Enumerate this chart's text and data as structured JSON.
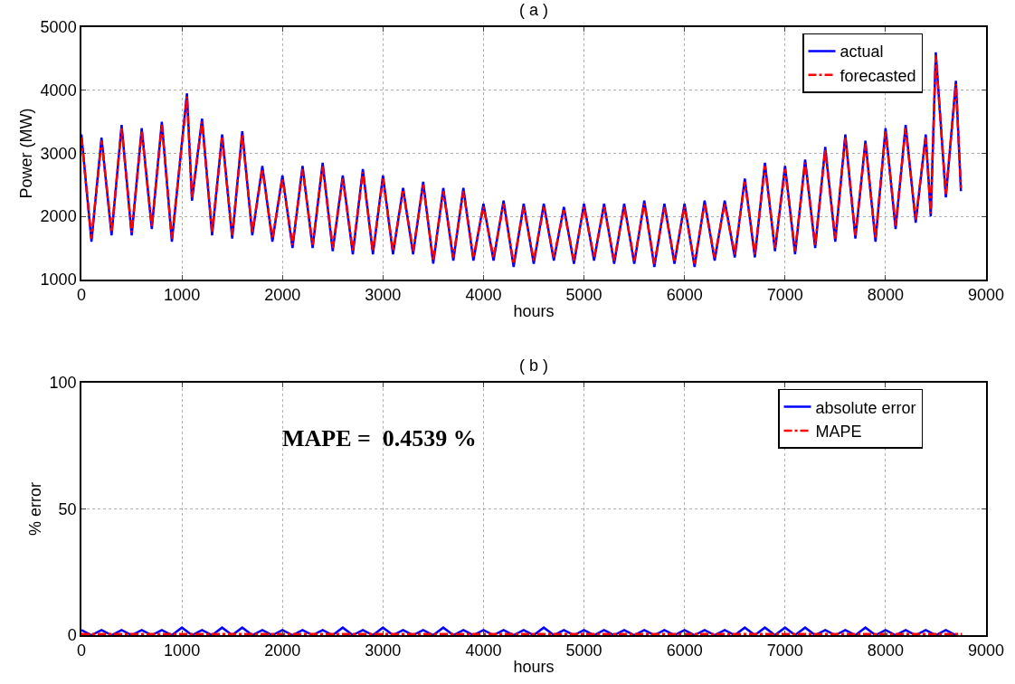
{
  "chart_data": [
    {
      "type": "line",
      "title": "( a )",
      "xlabel": "hours",
      "ylabel": "Power (MW)",
      "xlim": [
        0,
        9000
      ],
      "xticks": [
        0,
        1000,
        2000,
        3000,
        4000,
        5000,
        6000,
        7000,
        8000,
        9000
      ],
      "ylim": [
        1000,
        5000
      ],
      "yticks": [
        1000,
        2000,
        3000,
        4000,
        5000
      ],
      "grid": true,
      "legend": "top right",
      "series": [
        {
          "name": "actual",
          "color": "#0000ff",
          "line_style": "solid",
          "x": [
            0,
            100,
            200,
            300,
            400,
            500,
            600,
            700,
            800,
            900,
            1050,
            1100,
            1200,
            1300,
            1400,
            1500,
            1600,
            1700,
            1800,
            1900,
            2000,
            2100,
            2200,
            2300,
            2400,
            2500,
            2600,
            2700,
            2800,
            2900,
            3000,
            3100,
            3200,
            3300,
            3400,
            3500,
            3600,
            3700,
            3800,
            3900,
            4000,
            4100,
            4200,
            4300,
            4400,
            4500,
            4600,
            4700,
            4800,
            4900,
            5000,
            5100,
            5200,
            5300,
            5400,
            5500,
            5600,
            5700,
            5800,
            5900,
            6000,
            6100,
            6200,
            6300,
            6400,
            6500,
            6600,
            6700,
            6800,
            6900,
            7000,
            7100,
            7200,
            7300,
            7400,
            7500,
            7600,
            7700,
            7800,
            7900,
            8000,
            8100,
            8200,
            8300,
            8400,
            8450,
            8500,
            8600,
            8700,
            8750
          ],
          "values": [
            3300,
            1600,
            3250,
            1700,
            3450,
            1700,
            3400,
            1800,
            3500,
            1600,
            3950,
            2250,
            3550,
            1700,
            3300,
            1650,
            3350,
            1700,
            2800,
            1600,
            2650,
            1500,
            2800,
            1500,
            2850,
            1450,
            2650,
            1400,
            2750,
            1400,
            2650,
            1400,
            2450,
            1400,
            2550,
            1250,
            2450,
            1300,
            2450,
            1300,
            2200,
            1300,
            2250,
            1200,
            2200,
            1250,
            2200,
            1300,
            2150,
            1250,
            2200,
            1300,
            2200,
            1250,
            2200,
            1250,
            2250,
            1200,
            2200,
            1250,
            2200,
            1200,
            2250,
            1300,
            2250,
            1350,
            2600,
            1350,
            2850,
            1450,
            2800,
            1400,
            2900,
            1500,
            3100,
            1600,
            3300,
            1650,
            3200,
            1600,
            3400,
            1800,
            3450,
            1900,
            3300,
            2000,
            4600,
            2300,
            4150,
            2400
          ]
        },
        {
          "name": "forecasted",
          "color": "#ff0000",
          "line_style": "dashed",
          "x": [
            0,
            100,
            200,
            300,
            400,
            500,
            600,
            700,
            800,
            900,
            1050,
            1100,
            1200,
            1300,
            1400,
            1500,
            1600,
            1700,
            1800,
            1900,
            2000,
            2100,
            2200,
            2300,
            2400,
            2500,
            2600,
            2700,
            2800,
            2900,
            3000,
            3100,
            3200,
            3300,
            3400,
            3500,
            3600,
            3700,
            3800,
            3900,
            4000,
            4100,
            4200,
            4300,
            4400,
            4500,
            4600,
            4700,
            4800,
            4900,
            5000,
            5100,
            5200,
            5300,
            5400,
            5500,
            5600,
            5700,
            5800,
            5900,
            6000,
            6100,
            6200,
            6300,
            6400,
            6500,
            6600,
            6700,
            6800,
            6900,
            7000,
            7100,
            7200,
            7300,
            7400,
            7500,
            7600,
            7700,
            7800,
            7900,
            8000,
            8100,
            8200,
            8300,
            8400,
            8450,
            8500,
            8600,
            8700,
            8750
          ],
          "values": [
            3250,
            1650,
            3200,
            1750,
            3400,
            1750,
            3350,
            1850,
            3450,
            1650,
            3900,
            2300,
            3500,
            1750,
            3250,
            1700,
            3300,
            1750,
            2750,
            1650,
            2600,
            1550,
            2750,
            1550,
            2800,
            1500,
            2600,
            1450,
            2700,
            1450,
            2600,
            1450,
            2400,
            1450,
            2500,
            1300,
            2400,
            1350,
            2400,
            1350,
            2150,
            1350,
            2200,
            1250,
            2150,
            1300,
            2150,
            1350,
            2100,
            1300,
            2150,
            1350,
            2150,
            1300,
            2150,
            1300,
            2200,
            1250,
            2150,
            1300,
            2150,
            1250,
            2200,
            1350,
            2200,
            1400,
            2550,
            1400,
            2800,
            1500,
            2750,
            1450,
            2850,
            1550,
            3050,
            1650,
            3250,
            1700,
            3150,
            1650,
            3350,
            1850,
            3400,
            1950,
            3250,
            2050,
            4550,
            2350,
            4100,
            2450
          ]
        }
      ]
    },
    {
      "type": "line",
      "title": "( b )",
      "xlabel": "hours",
      "ylabel": "% error",
      "xlim": [
        0,
        9000
      ],
      "xticks": [
        0,
        1000,
        2000,
        3000,
        4000,
        5000,
        6000,
        7000,
        8000,
        9000
      ],
      "ylim": [
        0,
        100
      ],
      "yticks": [
        0,
        50,
        100
      ],
      "grid": true,
      "legend": "top right",
      "annotations": [
        "MAPE =  0.4539 %"
      ],
      "series": [
        {
          "name": "absolute error",
          "color": "#0000ff",
          "line_style": "solid",
          "x": [
            0,
            100,
            200,
            300,
            400,
            500,
            600,
            700,
            800,
            900,
            1000,
            1100,
            1200,
            1300,
            1400,
            1500,
            1600,
            1700,
            1800,
            1900,
            2000,
            2100,
            2200,
            2300,
            2400,
            2500,
            2600,
            2700,
            2800,
            2900,
            3000,
            3100,
            3200,
            3300,
            3400,
            3500,
            3600,
            3700,
            3800,
            3900,
            4000,
            4100,
            4200,
            4300,
            4400,
            4500,
            4600,
            4700,
            4800,
            4900,
            5000,
            5100,
            5200,
            5300,
            5400,
            5500,
            5600,
            5700,
            5800,
            5900,
            6000,
            6100,
            6200,
            6300,
            6400,
            6500,
            6600,
            6700,
            6800,
            6900,
            7000,
            7100,
            7200,
            7300,
            7400,
            7500,
            7600,
            7700,
            7800,
            7900,
            8000,
            8100,
            8200,
            8300,
            8400,
            8500,
            8600,
            8700
          ],
          "values": [
            2,
            0,
            2,
            0,
            2,
            0,
            2,
            0,
            2,
            0,
            3,
            0,
            2,
            0,
            3,
            0,
            3,
            0,
            2,
            0,
            2,
            0,
            2,
            0,
            2,
            0,
            3,
            0,
            2,
            0,
            3,
            0,
            2,
            0,
            2,
            0,
            3,
            0,
            2,
            0,
            2,
            0,
            2,
            0,
            2,
            0,
            3,
            0,
            2,
            0,
            2,
            0,
            2,
            0,
            2,
            0,
            2,
            0,
            2,
            0,
            2,
            0,
            2,
            0,
            2,
            0,
            3,
            0,
            3,
            0,
            3,
            0,
            3,
            0,
            2,
            0,
            2,
            0,
            3,
            0,
            2,
            0,
            2,
            0,
            2,
            0,
            2,
            0
          ]
        },
        {
          "name": "MAPE",
          "color": "#ff0000",
          "line_style": "dashed",
          "x": [
            0,
            8760
          ],
          "values": [
            0.45,
            0.45
          ]
        }
      ]
    }
  ]
}
